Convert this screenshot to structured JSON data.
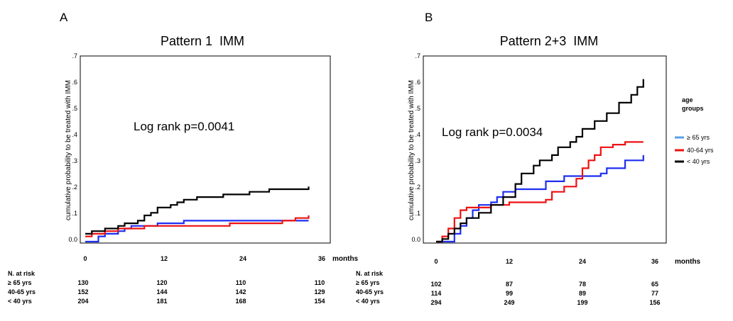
{
  "chart_data": [
    {
      "type": "line",
      "panel_label": "A",
      "title": "Pattern 1  IMM",
      "ylabel": "cumulative probability to be treated with IMM",
      "xlabel": "months",
      "annotation": "Log rank p=0.0041",
      "xlim": [
        -2,
        38
      ],
      "ylim": [
        0,
        0.7
      ],
      "y_ticks": [
        ".7",
        ".6",
        ".5",
        ".4",
        ".3",
        ".2",
        ".1",
        "0.0"
      ],
      "y_tick_values": [
        0.7,
        0.6,
        0.5,
        0.4,
        0.3,
        0.2,
        0.1,
        0.0
      ],
      "x_ticks": [
        "0",
        "12",
        "24",
        "36"
      ],
      "x_tick_values": [
        0,
        12,
        24,
        36
      ],
      "series": [
        {
          "key": "ge65",
          "color": "#1e2ef0",
          "points": [
            [
              0,
              0.0
            ],
            [
              1,
              0.0
            ],
            [
              2,
              0.02
            ],
            [
              3,
              0.03
            ],
            [
              5,
              0.04
            ],
            [
              6,
              0.05
            ],
            [
              7,
              0.06
            ],
            [
              10,
              0.06
            ],
            [
              11,
              0.07
            ],
            [
              14,
              0.07
            ],
            [
              15,
              0.08
            ],
            [
              34,
              0.08
            ]
          ]
        },
        {
          "key": "40to64",
          "color": "#ee1111",
          "points": [
            [
              0,
              0.02
            ],
            [
              1,
              0.03
            ],
            [
              3,
              0.04
            ],
            [
              5,
              0.05
            ],
            [
              7,
              0.05
            ],
            [
              9,
              0.06
            ],
            [
              20,
              0.06
            ],
            [
              22,
              0.07
            ],
            [
              28,
              0.07
            ],
            [
              30,
              0.08
            ],
            [
              32,
              0.09
            ],
            [
              34,
              0.1
            ]
          ]
        },
        {
          "key": "lt40",
          "color": "#000000",
          "points": [
            [
              0,
              0.03
            ],
            [
              1,
              0.04
            ],
            [
              2,
              0.04
            ],
            [
              3,
              0.05
            ],
            [
              5,
              0.06
            ],
            [
              6,
              0.07
            ],
            [
              8,
              0.08
            ],
            [
              9,
              0.1
            ],
            [
              10,
              0.11
            ],
            [
              11,
              0.13
            ],
            [
              13,
              0.14
            ],
            [
              14,
              0.15
            ],
            [
              15,
              0.16
            ],
            [
              17,
              0.17
            ],
            [
              21,
              0.18
            ],
            [
              25,
              0.19
            ],
            [
              28,
              0.2
            ],
            [
              34,
              0.21
            ]
          ]
        }
      ],
      "risk_table": {
        "header": "N. at risk",
        "rows": [
          {
            "label": "≥ 65 yrs",
            "values": [
              "130",
              "120",
              "110",
              "110"
            ]
          },
          {
            "label": "40-65 yrs",
            "values": [
              "152",
              "144",
              "142",
              "129"
            ]
          },
          {
            "label": "< 40 yrs",
            "values": [
              "204",
              "181",
              "168",
              "154"
            ]
          }
        ]
      }
    },
    {
      "type": "line",
      "panel_label": "B",
      "title": "Pattern 2+3  IMM",
      "ylabel": "cumulative probability to be treated with IMM",
      "xlabel": "months",
      "annotation": "Log rank p=0.0034",
      "xlim": [
        -2,
        37
      ],
      "ylim": [
        0,
        0.7
      ],
      "y_ticks": [
        ".7",
        ".6",
        ".5",
        ".4",
        ".3",
        ".2",
        ".1",
        "0.0"
      ],
      "y_tick_values": [
        0.7,
        0.6,
        0.5,
        0.4,
        0.3,
        0.2,
        0.1,
        0.0
      ],
      "x_ticks": [
        "0",
        "12",
        "24",
        "36"
      ],
      "x_tick_values": [
        0,
        12,
        24,
        36
      ],
      "legend": {
        "title_line1": "age",
        "title_line2": "groups",
        "placement": "right",
        "items": [
          {
            "label": "≥ 65 yrs",
            "color": "#5aa0e6"
          },
          {
            "label": "40-64 yrs",
            "color": "#ee1111"
          },
          {
            "label": "< 40 yrs",
            "color": "#000000"
          }
        ]
      },
      "series": [
        {
          "key": "ge65",
          "color": "#1e2ef0",
          "points": [
            [
              0,
              0.0
            ],
            [
              2,
              0.0
            ],
            [
              3,
              0.03
            ],
            [
              4,
              0.06
            ],
            [
              5,
              0.09
            ],
            [
              6,
              0.12
            ],
            [
              7,
              0.14
            ],
            [
              9,
              0.15
            ],
            [
              10,
              0.17
            ],
            [
              11,
              0.19
            ],
            [
              12,
              0.19
            ],
            [
              13,
              0.2
            ],
            [
              17,
              0.2
            ],
            [
              18,
              0.23
            ],
            [
              21,
              0.25
            ],
            [
              27,
              0.26
            ],
            [
              28,
              0.28
            ],
            [
              31,
              0.31
            ],
            [
              34,
              0.33
            ]
          ]
        },
        {
          "key": "40to64",
          "color": "#ee1111",
          "points": [
            [
              0,
              0.0
            ],
            [
              1,
              0.02
            ],
            [
              2,
              0.05
            ],
            [
              3,
              0.09
            ],
            [
              4,
              0.12
            ],
            [
              5,
              0.13
            ],
            [
              9,
              0.14
            ],
            [
              12,
              0.15
            ],
            [
              18,
              0.16
            ],
            [
              19,
              0.19
            ],
            [
              21,
              0.21
            ],
            [
              23,
              0.24
            ],
            [
              24,
              0.28
            ],
            [
              25,
              0.31
            ],
            [
              26,
              0.33
            ],
            [
              27,
              0.36
            ],
            [
              29,
              0.37
            ],
            [
              31,
              0.38
            ],
            [
              34,
              0.38
            ]
          ]
        },
        {
          "key": "lt40",
          "color": "#000000",
          "points": [
            [
              0,
              0.0
            ],
            [
              1,
              0.01
            ],
            [
              2,
              0.03
            ],
            [
              3,
              0.05
            ],
            [
              4,
              0.07
            ],
            [
              5,
              0.09
            ],
            [
              7,
              0.11
            ],
            [
              9,
              0.14
            ],
            [
              11,
              0.17
            ],
            [
              13,
              0.22
            ],
            [
              14,
              0.26
            ],
            [
              16,
              0.29
            ],
            [
              17,
              0.31
            ],
            [
              19,
              0.33
            ],
            [
              20,
              0.36
            ],
            [
              22,
              0.38
            ],
            [
              23,
              0.4
            ],
            [
              24,
              0.43
            ],
            [
              26,
              0.46
            ],
            [
              28,
              0.49
            ],
            [
              30,
              0.53
            ],
            [
              32,
              0.56
            ],
            [
              33,
              0.59
            ],
            [
              34,
              0.62
            ]
          ]
        }
      ],
      "risk_table": {
        "header": "N. at risk",
        "rows": [
          {
            "label": "≥ 65 yrs",
            "values": [
              "102",
              "87",
              "78",
              "65"
            ]
          },
          {
            "label": "40-65 yrs",
            "values": [
              "114",
              "99",
              "89",
              "77"
            ]
          },
          {
            "label": "< 40 yrs",
            "values": [
              "294",
              "249",
              "199",
              "156"
            ]
          }
        ]
      }
    }
  ]
}
